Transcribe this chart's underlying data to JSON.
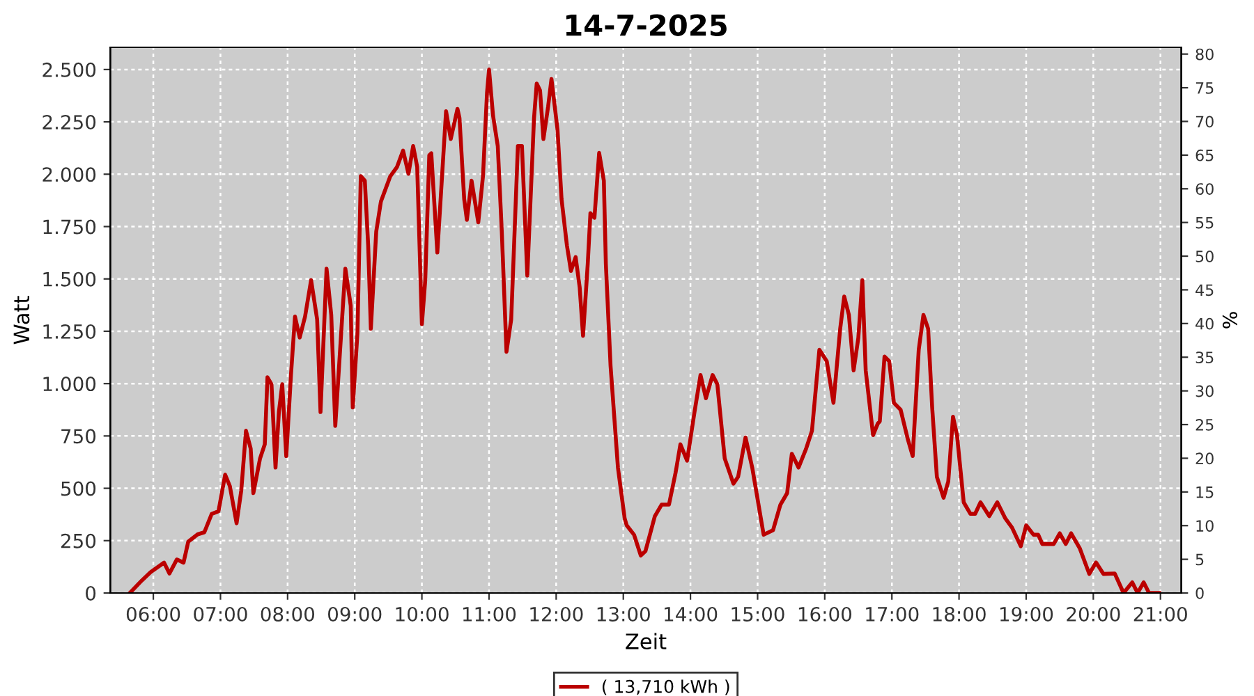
{
  "chart_data": {
    "type": "line",
    "title": "14-7-2025",
    "xlabel": "Zeit",
    "ylabel": "Watt",
    "y2label": "%",
    "xlim": [
      5.36,
      21.31
    ],
    "ylim": [
      0,
      2606
    ],
    "y2lim": [
      0,
      81
    ],
    "xticks": [
      {
        "value": 6,
        "label": "06:00"
      },
      {
        "value": 7,
        "label": "07:00"
      },
      {
        "value": 8,
        "label": "08:00"
      },
      {
        "value": 9,
        "label": "09:00"
      },
      {
        "value": 10,
        "label": "10:00"
      },
      {
        "value": 11,
        "label": "11:00"
      },
      {
        "value": 12,
        "label": "12:00"
      },
      {
        "value": 13,
        "label": "13:00"
      },
      {
        "value": 14,
        "label": "14:00"
      },
      {
        "value": 15,
        "label": "15:00"
      },
      {
        "value": 16,
        "label": "16:00"
      },
      {
        "value": 17,
        "label": "17:00"
      },
      {
        "value": 18,
        "label": "18:00"
      },
      {
        "value": 19,
        "label": "19:00"
      },
      {
        "value": 20,
        "label": "20:00"
      },
      {
        "value": 21,
        "label": "21:00"
      }
    ],
    "yticks": [
      0,
      250,
      500,
      750,
      {
        "value": 1000,
        "label": "1.000"
      },
      {
        "value": 1250,
        "label": "1.250"
      },
      {
        "value": 1500,
        "label": "1.500"
      },
      {
        "value": 1750,
        "label": "1.750"
      },
      {
        "value": 2000,
        "label": "2.000"
      },
      {
        "value": 2250,
        "label": "2.250"
      },
      {
        "value": 2500,
        "label": "2.500"
      }
    ],
    "y2ticks": [
      0,
      5,
      10,
      15,
      20,
      25,
      30,
      35,
      40,
      45,
      50,
      55,
      60,
      65,
      70,
      75,
      80
    ],
    "grid": true,
    "legend": "bottom",
    "marker": "none",
    "line_style": "solid",
    "series": [
      {
        "name": "( 13,710 kWh )",
        "color": "#bb0000",
        "x": [
          5.65,
          5.83,
          5.96,
          6.16,
          6.24,
          6.35,
          6.45,
          6.52,
          6.66,
          6.76,
          6.87,
          6.97,
          7.07,
          7.14,
          7.24,
          7.31,
          7.38,
          7.45,
          7.49,
          7.59,
          7.66,
          7.7,
          7.76,
          7.82,
          7.87,
          7.92,
          7.98,
          8.05,
          8.11,
          8.18,
          8.26,
          8.35,
          8.44,
          8.49,
          8.58,
          8.65,
          8.71,
          8.815,
          8.86,
          8.94,
          8.97,
          9.04,
          9.09,
          9.15,
          9.2,
          9.24,
          9.32,
          9.39,
          9.53,
          9.63,
          9.72,
          9.8,
          9.87,
          9.93,
          10.0,
          10.05,
          10.11,
          10.14,
          10.23,
          10.36,
          10.43,
          10.53,
          10.56,
          10.63,
          10.67,
          10.74,
          10.84,
          10.91,
          10.97,
          11.0,
          11.06,
          11.13,
          11.19,
          11.26,
          11.33,
          11.43,
          11.49,
          11.57,
          11.67,
          11.71,
          11.76,
          11.81,
          11.88,
          11.93,
          12.02,
          12.08,
          12.16,
          12.22,
          12.29,
          12.35,
          12.4,
          12.47,
          12.51,
          12.57,
          12.64,
          12.71,
          12.74,
          12.81,
          12.92,
          13.02,
          13.05,
          13.16,
          13.26,
          13.33,
          13.47,
          13.57,
          13.68,
          13.78,
          13.85,
          13.95,
          14.06,
          14.15,
          14.23,
          14.33,
          14.4,
          14.51,
          14.64,
          14.71,
          14.82,
          14.92,
          15.09,
          15.23,
          15.34,
          15.44,
          15.51,
          15.61,
          15.72,
          15.81,
          15.92,
          16.03,
          16.13,
          16.23,
          16.29,
          16.36,
          16.43,
          16.5,
          16.56,
          16.61,
          16.72,
          16.79,
          16.82,
          16.89,
          16.96,
          17.03,
          17.13,
          17.24,
          17.31,
          17.4,
          17.47,
          17.54,
          17.6,
          17.67,
          17.77,
          17.84,
          17.91,
          17.97,
          18.07,
          18.17,
          18.24,
          18.32,
          18.45,
          18.57,
          18.69,
          18.79,
          18.92,
          19.0,
          19.11,
          19.18,
          19.24,
          19.41,
          19.5,
          19.59,
          19.67,
          19.8,
          19.94,
          20.04,
          20.15,
          20.32,
          20.45,
          20.58,
          20.66,
          20.75,
          20.83,
          20.94,
          20.98
        ],
        "values": [
          0,
          60,
          100,
          145,
          93,
          160,
          145,
          245,
          280,
          290,
          378,
          390,
          565,
          510,
          333,
          490,
          775,
          690,
          477,
          643,
          710,
          1030,
          997,
          599,
          864,
          997,
          654,
          1041,
          1320,
          1220,
          1320,
          1494,
          1306,
          864,
          1549,
          1328,
          798,
          1328,
          1549,
          1372,
          886,
          1240,
          1991,
          1969,
          1660,
          1262,
          1726,
          1870,
          1991,
          2035,
          2113,
          2002,
          2135,
          2035,
          1284,
          1494,
          2091,
          2100,
          1626,
          2301,
          2168,
          2312,
          2268,
          1881,
          1782,
          1969,
          1770,
          1991,
          2389,
          2500,
          2279,
          2135,
          1726,
          1152,
          1306,
          2135,
          2135,
          1516,
          2268,
          2433,
          2400,
          2168,
          2323,
          2455,
          2212,
          1881,
          1660,
          1538,
          1604,
          1460,
          1228,
          1571,
          1814,
          1792,
          2102,
          1969,
          1571,
          1085,
          599,
          356,
          323,
          278,
          179,
          200,
          367,
          422,
          422,
          577,
          710,
          632,
          864,
          1041,
          930,
          1041,
          997,
          643,
          522,
          555,
          743,
          599,
          278,
          300,
          422,
          477,
          665,
          599,
          687,
          775,
          1162,
          1107,
          908,
          1262,
          1416,
          1328,
          1063,
          1218,
          1494,
          1063,
          754,
          809,
          820,
          1129,
          1107,
          908,
          875,
          731,
          654,
          1162,
          1328,
          1262,
          886,
          555,
          455,
          533,
          842,
          754,
          433,
          378,
          378,
          433,
          367,
          433,
          356,
          312,
          223,
          323,
          278,
          278,
          234,
          234,
          285,
          234,
          285,
          212,
          91,
          146,
          91,
          93,
          0,
          51,
          0,
          51,
          0,
          0,
          0
        ]
      }
    ]
  }
}
